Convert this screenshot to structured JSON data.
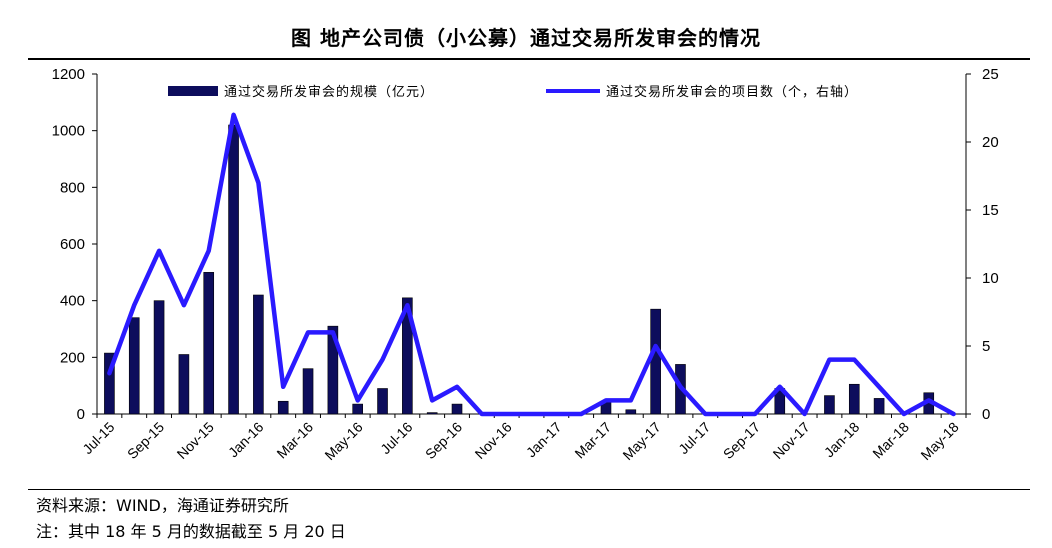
{
  "title": "图 地产公司债（小公募）通过交易所发审会的情况",
  "source": "资料来源：WIND，海通证券研究所",
  "note": "注：其中 18 年 5 月的数据截至 5 月 20 日",
  "chart_data": {
    "type": "bar+line",
    "title": "图 地产公司债（小公募）通过交易所发审会的情况",
    "categories": [
      "Jul-15",
      "Aug-15",
      "Sep-15",
      "Oct-15",
      "Nov-15",
      "Dec-15",
      "Jan-16",
      "Feb-16",
      "Mar-16",
      "Apr-16",
      "May-16",
      "Jun-16",
      "Jul-16",
      "Aug-16",
      "Sep-16",
      "Oct-16",
      "Nov-16",
      "Dec-16",
      "Jan-17",
      "Feb-17",
      "Mar-17",
      "Apr-17",
      "May-17",
      "Jun-17",
      "Jul-17",
      "Aug-17",
      "Sep-17",
      "Oct-17",
      "Nov-17",
      "Dec-17",
      "Jan-18",
      "Feb-18",
      "Mar-18",
      "Apr-18",
      "May-18"
    ],
    "x_tick_labels": [
      "Jul-15",
      "Sep-15",
      "Nov-15",
      "Jan-16",
      "Mar-16",
      "May-16",
      "Jul-16",
      "Sep-16",
      "Nov-16",
      "Jan-17",
      "Mar-17",
      "May-17",
      "Jul-17",
      "Sep-17",
      "Nov-17",
      "Jan-18",
      "Mar-18",
      "May-18"
    ],
    "series": [
      {
        "name": "通过交易所发审会的规模（亿元）",
        "type": "bar",
        "axis": "left",
        "color": "#0d0d5c",
        "values": [
          215,
          340,
          400,
          210,
          500,
          1020,
          420,
          45,
          160,
          310,
          35,
          90,
          410,
          5,
          35,
          0,
          0,
          0,
          0,
          0,
          40,
          15,
          370,
          175,
          0,
          0,
          0,
          90,
          0,
          65,
          105,
          55,
          0,
          75,
          0
        ]
      },
      {
        "name": "通过交易所发审会的项目数（个，右轴）",
        "type": "line",
        "axis": "right",
        "color": "#2a1aff",
        "values": [
          3,
          8,
          12,
          8,
          12,
          22,
          17,
          2,
          6,
          6,
          1,
          4,
          8,
          1,
          2,
          0,
          0,
          0,
          0,
          0,
          1,
          1,
          5,
          2,
          0,
          0,
          0,
          2,
          0,
          4,
          4,
          2,
          0,
          1,
          0
        ]
      }
    ],
    "y_left": {
      "min": 0,
      "max": 1200,
      "ticks": [
        0,
        200,
        400,
        600,
        800,
        1000,
        1200
      ]
    },
    "y_right": {
      "min": 0,
      "max": 25,
      "ticks": [
        0,
        5,
        10,
        15,
        20,
        25
      ]
    },
    "legend_position": "top",
    "grid": false
  }
}
